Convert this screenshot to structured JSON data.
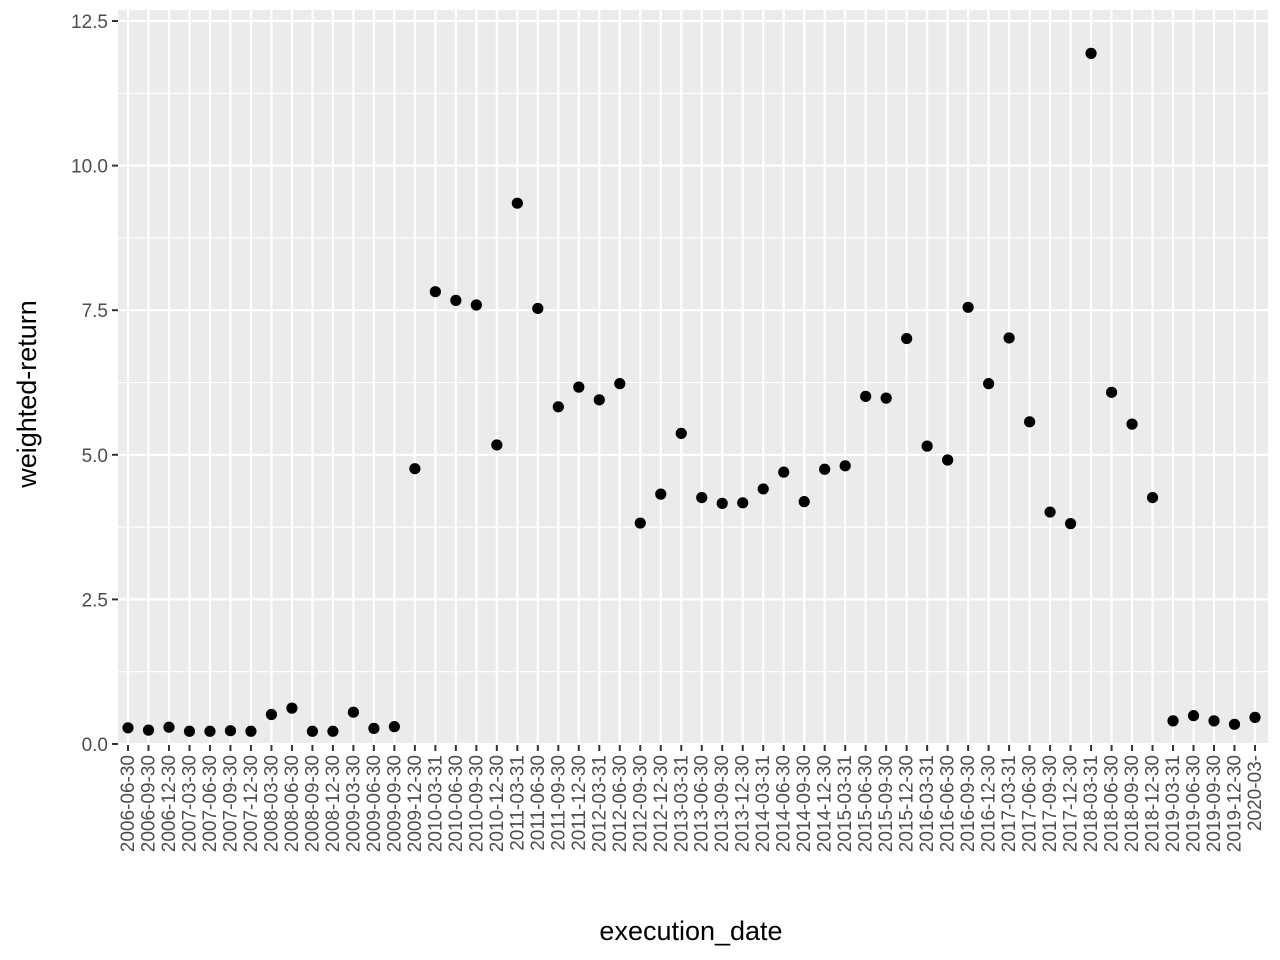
{
  "chart_data": {
    "type": "scatter",
    "title": "",
    "xlabel": "execution_date",
    "ylabel": "weighted-return",
    "x_axis_kind": "categorical-dates",
    "ylim": [
      0,
      12.5
    ],
    "y_ticks": [
      0.0,
      2.5,
      5.0,
      7.5,
      10.0,
      12.5
    ],
    "y_tick_labels": [
      "0.0",
      "2.5",
      "5.0",
      "7.5",
      "10.0",
      "12.5"
    ],
    "grid": true,
    "legend": "none",
    "colors": {
      "panel": "#ebebeb",
      "grid": "#ffffff",
      "point": "#000000",
      "tick_text": "#4d4d4d"
    },
    "categories": [
      "2006-06-30",
      "2006-09-30",
      "2006-12-30",
      "2007-03-30",
      "2007-06-30",
      "2007-09-30",
      "2007-12-30",
      "2008-03-30",
      "2008-06-30",
      "2008-09-30",
      "2008-12-30",
      "2009-03-30",
      "2009-06-30",
      "2009-09-30",
      "2009-12-30",
      "2010-03-31",
      "2010-06-30",
      "2010-09-30",
      "2010-12-30",
      "2011-03-31",
      "2011-06-30",
      "2011-09-30",
      "2011-12-30",
      "2012-03-31",
      "2012-06-30",
      "2012-09-30",
      "2012-12-30",
      "2013-03-31",
      "2013-06-30",
      "2013-09-30",
      "2013-12-30",
      "2014-03-31",
      "2014-06-30",
      "2014-09-30",
      "2014-12-30",
      "2015-03-31",
      "2015-06-30",
      "2015-09-30",
      "2015-12-30",
      "2016-03-31",
      "2016-06-30",
      "2016-09-30",
      "2016-12-30",
      "2017-03-31",
      "2017-06-30",
      "2017-09-30",
      "2017-12-30",
      "2018-03-31",
      "2018-06-30",
      "2018-09-30",
      "2018-12-30",
      "2019-03-31",
      "2019-06-30",
      "2019-09-30",
      "2019-12-30",
      "2020-03-"
    ],
    "values": [
      0.28,
      0.24,
      0.29,
      0.22,
      0.22,
      0.23,
      0.22,
      0.51,
      0.62,
      0.22,
      0.22,
      0.55,
      0.27,
      0.3,
      4.76,
      7.82,
      7.67,
      7.59,
      5.17,
      9.35,
      7.53,
      5.83,
      6.17,
      5.95,
      6.23,
      3.82,
      4.32,
      5.37,
      4.26,
      4.16,
      4.17,
      4.41,
      4.7,
      4.19,
      4.75,
      4.81,
      6.01,
      5.98,
      7.01,
      5.15,
      4.91,
      7.55,
      6.23,
      7.02,
      5.57,
      4.01,
      3.81,
      11.94,
      6.08,
      5.53,
      4.26,
      0.4,
      0.49,
      0.4,
      0.34,
      0.46
    ]
  }
}
